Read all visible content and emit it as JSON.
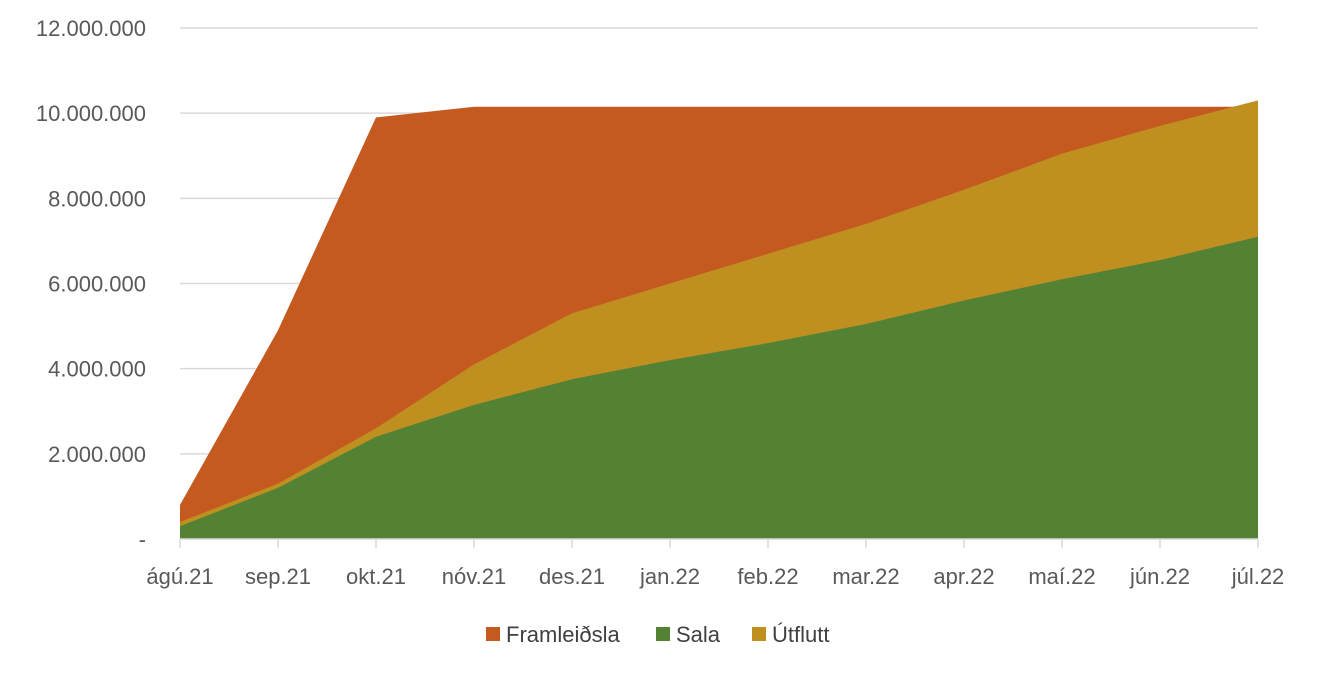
{
  "chart_data": {
    "type": "area",
    "categories": [
      "ágú.21",
      "sep.21",
      "okt.21",
      "nóv.21",
      "des.21",
      "jan.22",
      "feb.22",
      "mar.22",
      "apr.22",
      "maí.22",
      "jún.22",
      "júl.22"
    ],
    "y_tick_labels": [
      "-",
      "2.000.000",
      "4.000.000",
      "6.000.000",
      "8.000.000",
      "10.000.000",
      "12.000.000"
    ],
    "ylim": [
      0,
      12000000
    ],
    "y_tick_step": 2000000,
    "grid": true,
    "legend_position": "bottom",
    "series": [
      {
        "name": "Framleiðsla",
        "color": "#C55A20",
        "values": [
          800000,
          4900000,
          9900000,
          10150000,
          10150000,
          10150000,
          10150000,
          10150000,
          10150000,
          10150000,
          10150000,
          10150000
        ]
      },
      {
        "name": "Sala",
        "color": "#548235",
        "values": [
          300000,
          1200000,
          2400000,
          3150000,
          3750000,
          4200000,
          4600000,
          5050000,
          5600000,
          6100000,
          6550000,
          7100000
        ]
      },
      {
        "name": "Útflutt",
        "color": "#BF8F20",
        "values": [
          400000,
          1300000,
          2600000,
          4100000,
          5300000,
          6000000,
          6700000,
          7400000,
          8200000,
          9050000,
          9700000,
          10300000
        ]
      }
    ],
    "draw_order": [
      "Framleiðsla",
      "Útflutt",
      "Sala"
    ]
  }
}
